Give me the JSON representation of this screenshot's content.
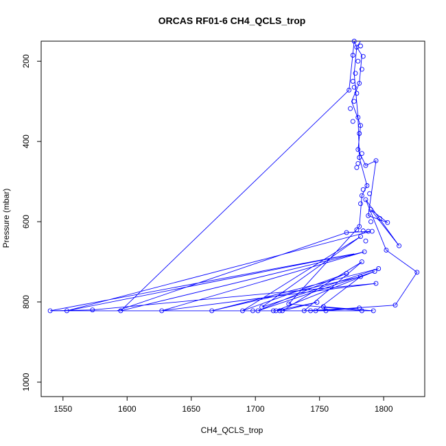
{
  "chart_data": {
    "type": "line",
    "title": "ORCAS RF01-6 CH4_QCLS_trop",
    "xlabel": "CH4_QCLS_trop",
    "ylabel": "Pressure (mbar)",
    "xlim": [
      1533,
      1832
    ],
    "ylim": [
      1036,
      150
    ],
    "y_reversed": true,
    "x_ticks": [
      1550,
      1600,
      1650,
      1700,
      1750,
      1800
    ],
    "y_ticks": [
      200,
      400,
      600,
      800,
      1000
    ],
    "grid": false,
    "series": [
      {
        "color": "#0000ff",
        "marker": "open-circle",
        "points": [
          [
            1777,
            150
          ],
          [
            1779,
            165
          ],
          [
            1782,
            162
          ],
          [
            1776,
            185
          ],
          [
            1784,
            188
          ],
          [
            1780,
            200
          ],
          [
            1778,
            230
          ],
          [
            1776,
            250
          ],
          [
            1777,
            265
          ],
          [
            1773,
            272
          ],
          [
            1779,
            280
          ],
          [
            1781,
            255
          ],
          [
            1783,
            220
          ],
          [
            1777,
            300
          ],
          [
            1774,
            318
          ],
          [
            1780,
            340
          ],
          [
            1782,
            360
          ],
          [
            1776,
            350
          ],
          [
            1781,
            380
          ],
          [
            1780,
            420
          ],
          [
            1783,
            430
          ],
          [
            1781,
            440
          ],
          [
            1780,
            455
          ],
          [
            1779,
            465
          ],
          [
            1786,
            460
          ],
          [
            1794,
            448
          ],
          [
            1787,
            510
          ],
          [
            1784,
            520
          ],
          [
            1783,
            535
          ],
          [
            1782,
            555
          ],
          [
            1786,
            545
          ],
          [
            1789,
            530
          ],
          [
            1790,
            570
          ],
          [
            1788,
            585
          ],
          [
            1790,
            600
          ],
          [
            1797,
            592
          ],
          [
            1803,
            602
          ],
          [
            1781,
            612
          ],
          [
            1779,
            620
          ],
          [
            1784,
            623
          ],
          [
            1788,
            624
          ],
          [
            1791,
            624
          ],
          [
            1782,
            637
          ],
          [
            1786,
            648
          ],
          [
            1812,
            660
          ],
          [
            1802,
            671
          ],
          [
            1785,
            675
          ],
          [
            1783,
            700
          ],
          [
            1796,
            717
          ],
          [
            1826,
            726
          ],
          [
            1793,
            724
          ],
          [
            1771,
            729
          ],
          [
            1782,
            737
          ],
          [
            1794,
            754
          ],
          [
            1748,
            801
          ],
          [
            1726,
            805
          ],
          [
            1809,
            808
          ],
          [
            1753,
            812
          ],
          [
            1781,
            815
          ],
          [
            1705,
            813
          ],
          [
            1540,
            822
          ],
          [
            1553,
            822
          ],
          [
            1573,
            820
          ],
          [
            1595,
            822
          ],
          [
            1627,
            822
          ],
          [
            1666,
            822
          ],
          [
            1690,
            822
          ],
          [
            1698,
            822
          ],
          [
            1702,
            822
          ],
          [
            1714,
            822
          ],
          [
            1716,
            822
          ],
          [
            1719,
            822
          ],
          [
            1721,
            822
          ],
          [
            1738,
            822
          ],
          [
            1743,
            822
          ],
          [
            1747,
            822
          ],
          [
            1755,
            822
          ],
          [
            1783,
            822
          ],
          [
            1792,
            822
          ],
          [
            1771,
            627
          ]
        ],
        "path_order": [
          [
            1540,
            822
          ],
          [
            1783,
            822
          ],
          [
            1592,
            822
          ],
          [
            1771,
            627
          ],
          [
            1790,
            624
          ],
          [
            1553,
            822
          ],
          [
            1777,
            680
          ],
          [
            1540,
            822
          ],
          [
            1573,
            820
          ],
          [
            1794,
            754
          ],
          [
            1627,
            822
          ],
          [
            1785,
            675
          ],
          [
            1595,
            822
          ],
          [
            1773,
            272
          ],
          [
            1777,
            150
          ],
          [
            1779,
            165
          ],
          [
            1783,
            185
          ],
          [
            1781,
            255
          ],
          [
            1775,
            300
          ],
          [
            1782,
            360
          ],
          [
            1780,
            420
          ],
          [
            1786,
            460
          ],
          [
            1794,
            448
          ],
          [
            1788,
            585
          ],
          [
            1803,
            602
          ],
          [
            1790,
            570
          ],
          [
            1812,
            660
          ],
          [
            1786,
            545
          ],
          [
            1802,
            671
          ],
          [
            1826,
            726
          ],
          [
            1809,
            808
          ],
          [
            1747,
            822
          ],
          [
            1782,
            737
          ],
          [
            1666,
            822
          ],
          [
            1796,
            717
          ],
          [
            1705,
            813
          ],
          [
            1782,
            637
          ],
          [
            1690,
            822
          ],
          [
            1771,
            729
          ],
          [
            1702,
            822
          ],
          [
            1793,
            724
          ],
          [
            1716,
            822
          ],
          [
            1748,
            801
          ],
          [
            1721,
            822
          ],
          [
            1783,
            700
          ],
          [
            1738,
            822
          ],
          [
            1781,
            815
          ],
          [
            1755,
            822
          ],
          [
            1753,
            812
          ],
          [
            1792,
            822
          ],
          [
            1783,
            822
          ],
          [
            1726,
            805
          ],
          [
            1781,
            612
          ],
          [
            1783,
            535
          ],
          [
            1787,
            510
          ],
          [
            1781,
            440
          ],
          [
            1780,
            340
          ],
          [
            1777,
            230
          ],
          [
            1779,
            165
          ],
          [
            1782,
            150
          ]
        ]
      }
    ]
  }
}
